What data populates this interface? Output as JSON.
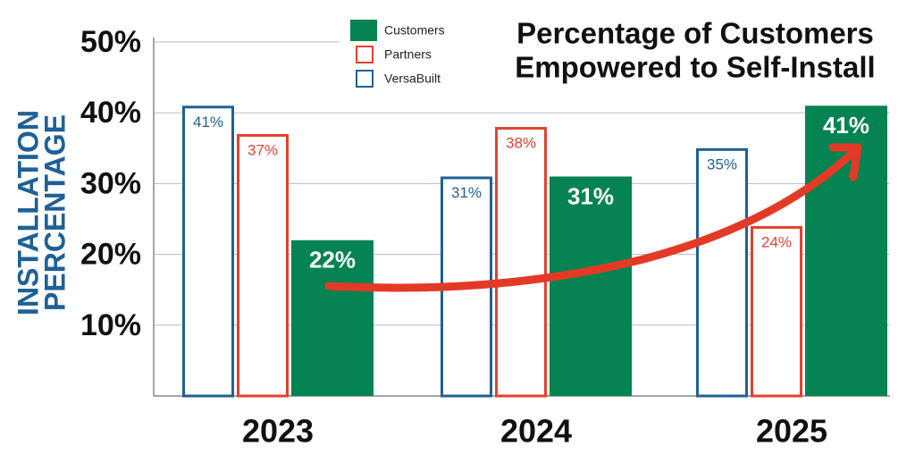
{
  "chart_data": {
    "type": "bar",
    "title": [
      "Percentage of Customers",
      "Empowered to Self-Install"
    ],
    "y_label": [
      "INSTALLATION",
      "PERCENTAGE"
    ],
    "categories": [
      "2023",
      "2024",
      "2025"
    ],
    "series": [
      {
        "name": "Customers",
        "color": "#068352",
        "fill": true,
        "values": [
          22,
          31,
          41
        ],
        "value_labels": [
          "22%",
          "31%",
          "41%"
        ]
      },
      {
        "name": "Partners",
        "color": "#e2412f",
        "fill": false,
        "values": [
          37,
          38,
          24
        ],
        "value_labels": [
          "37%",
          "38%",
          "24%"
        ]
      },
      {
        "name": "VersaBuilt",
        "color": "#1f6096",
        "fill": false,
        "values": [
          41,
          31,
          35
        ],
        "value_labels": [
          "41%",
          "31%",
          "35%"
        ]
      }
    ],
    "ylim": [
      0,
      50
    ],
    "yticks": [
      {
        "value": 10,
        "label": "10%"
      },
      {
        "value": 20,
        "label": "20%"
      },
      {
        "value": 30,
        "label": "30%"
      },
      {
        "value": 40,
        "label": "40%"
      },
      {
        "value": 50,
        "label": "50%"
      }
    ],
    "grid": true
  }
}
